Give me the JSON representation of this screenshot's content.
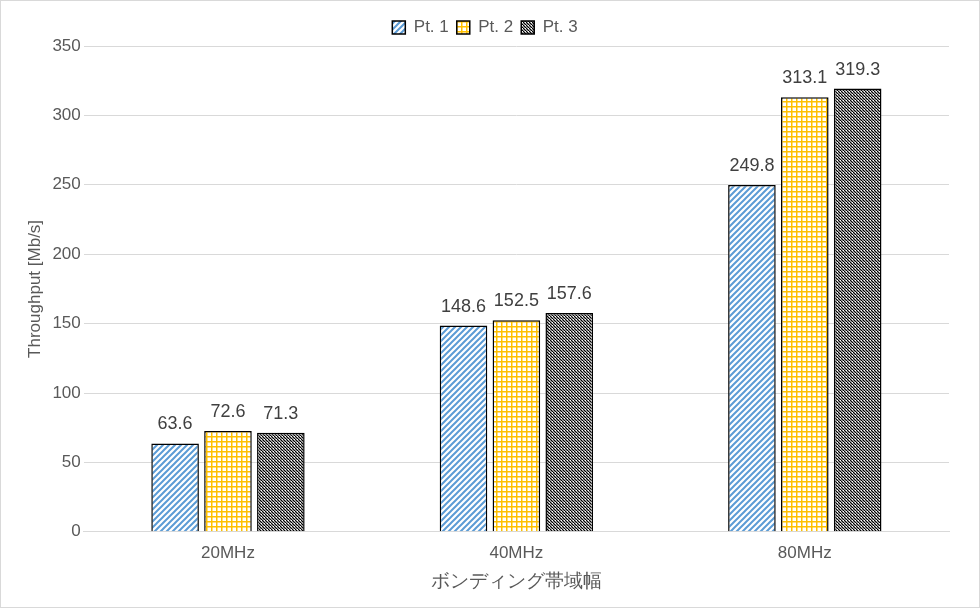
{
  "chart_data": {
    "type": "bar",
    "x_label": "ボンディング帯域幅",
    "y_label": "Throughput [Mb/s]",
    "categories": [
      "20MHz",
      "40MHz",
      "80MHz"
    ],
    "series": [
      {
        "name": "Pt. 1",
        "color": "#5b9bd5",
        "values": [
          63.6,
          148.6,
          249.8
        ]
      },
      {
        "name": "Pt. 2",
        "color": "#ffc000",
        "values": [
          72.6,
          152.5,
          313.1
        ]
      },
      {
        "name": "Pt. 3",
        "color": "#000000",
        "values": [
          71.3,
          157.6,
          319.3
        ]
      }
    ],
    "ylim": [
      0,
      350
    ],
    "yticks": [
      0,
      50,
      100,
      150,
      200,
      250,
      300,
      350
    ],
    "grid": true,
    "legend": "top",
    "data_labels": true
  }
}
